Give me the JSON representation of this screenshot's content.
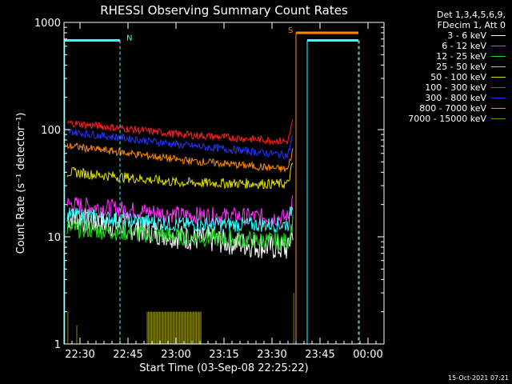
{
  "title": "RHESSI Observing Summary Count Rates",
  "legend_header": [
    "Det 1,3,4,5,6,9,",
    "FDecim 1, Att 0"
  ],
  "timestamp": "15-Oct-2021 07:21",
  "chart_data": {
    "type": "line",
    "title": "RHESSI Observing Summary Count Rates",
    "xlabel": "Start Time (03-Sep-08 22:25:22)",
    "ylabel": "Count Rate (s⁻¹ detector⁻¹)",
    "yscale": "log",
    "ylim": [
      1,
      1000
    ],
    "xlim_minutes_after_2225": [
      0,
      100
    ],
    "x_ticks": [
      {
        "label": "22:30",
        "min": 5
      },
      {
        "label": "22:45",
        "min": 20
      },
      {
        "label": "23:00",
        "min": 35
      },
      {
        "label": "23:15",
        "min": 50
      },
      {
        "label": "23:30",
        "min": 65
      },
      {
        "label": "23:45",
        "min": 80
      },
      {
        "label": "00:00",
        "min": 95
      }
    ],
    "y_ticks": [
      {
        "label": "1",
        "value": 1
      },
      {
        "label": "10",
        "value": 10
      },
      {
        "label": "100",
        "value": 100
      },
      {
        "label": "1000",
        "value": 1000
      }
    ],
    "series": [
      {
        "name": "3 - 6 keV",
        "color": "#ffffff",
        "start": 15,
        "mid": 10,
        "end": 7.5,
        "noise": 0.1
      },
      {
        "name": "6 - 12 keV",
        "color": "#ff33ff",
        "start": 20,
        "mid": 16,
        "end": 15,
        "noise": 0.07
      },
      {
        "name": "12 - 25 keV",
        "color": "#22dd22",
        "start": 12,
        "mid": 10,
        "end": 9,
        "noise": 0.07
      },
      {
        "name": "25 - 50 keV",
        "color": "#33ffff",
        "start": 16,
        "mid": 13,
        "end": 13,
        "noise": 0.06
      },
      {
        "name": "50 - 100 keV",
        "color": "#dddd00",
        "start": 40,
        "mid": 32,
        "end": 31,
        "noise": 0.04
      },
      {
        "name": "100 - 300 keV",
        "color": "#ff2020",
        "start": 115,
        "mid": 90,
        "end": 77,
        "noise": 0.03
      },
      {
        "name": "300 - 800 keV",
        "color": "#2233ff",
        "start": 95,
        "mid": 72,
        "end": 57,
        "noise": 0.03
      },
      {
        "name": "800 - 7000 keV",
        "color": "#ff8800",
        "start": 70,
        "mid": 52,
        "end": 42,
        "noise": 0.03
      },
      {
        "name": "7000 - 15000 keV",
        "color": "#888800",
        "start": 0,
        "mid": 0,
        "end": 0,
        "noise": 0
      }
    ],
    "end_minute": 71.5,
    "annotations": [
      {
        "label": "N",
        "color": "#33ffff",
        "x_start": 0,
        "x_end": 17.5,
        "level": 680
      },
      {
        "label": "S",
        "color": "#ff8800",
        "x_start": 72.5,
        "x_end": 92,
        "level": 800
      },
      {
        "label": "",
        "color": "#33ffff",
        "x_start": 76,
        "x_end": 92,
        "level": 680
      }
    ]
  }
}
